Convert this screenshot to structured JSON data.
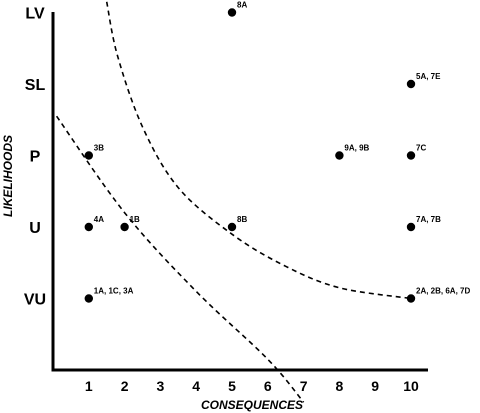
{
  "chart_data": {
    "type": "scatter",
    "xlabel": "CONSEQUENCES",
    "ylabel": "LIKELIHOODS",
    "x_ticks": [
      "1",
      "2",
      "3",
      "4",
      "5",
      "6",
      "7",
      "8",
      "9",
      "10"
    ],
    "y_ticks": [
      "VU",
      "U",
      "P",
      "SL",
      "LV"
    ],
    "xlim": [
      0,
      10
    ],
    "ylim": [
      0,
      5
    ],
    "grid": false,
    "points": [
      {
        "x": 5,
        "y": "LV",
        "label": "8A"
      },
      {
        "x": 10,
        "y": "SL",
        "label": "5A, 7E"
      },
      {
        "x": 1,
        "y": "P",
        "label": "3B"
      },
      {
        "x": 8,
        "y": "P",
        "label": "9A, 9B"
      },
      {
        "x": 10,
        "y": "P",
        "label": "7C"
      },
      {
        "x": 1,
        "y": "U",
        "label": "4A"
      },
      {
        "x": 2,
        "y": "U",
        "label": "1B"
      },
      {
        "x": 5,
        "y": "U",
        "label": "8B"
      },
      {
        "x": 10,
        "y": "U",
        "label": "7A, 7B"
      },
      {
        "x": 1,
        "y": "VU",
        "label": "1A, 1C, 3A"
      },
      {
        "x": 10,
        "y": "VU",
        "label": "2A, 2B, 6A, 7D"
      }
    ],
    "boundaries": [
      {
        "style": "dashed",
        "points": [
          [
            0.1,
            3.55
          ],
          [
            2.0,
            2.2
          ],
          [
            4.0,
            1.1
          ],
          [
            6.0,
            0.15
          ],
          [
            7.0,
            -0.45
          ]
        ]
      },
      {
        "style": "dashed",
        "points": [
          [
            1.5,
            5.15
          ],
          [
            1.8,
            4.4
          ],
          [
            2.5,
            3.4
          ],
          [
            3.5,
            2.55
          ],
          [
            5.0,
            1.9
          ],
          [
            6.5,
            1.45
          ],
          [
            8.0,
            1.15
          ],
          [
            10.0,
            1.0
          ]
        ]
      }
    ]
  }
}
